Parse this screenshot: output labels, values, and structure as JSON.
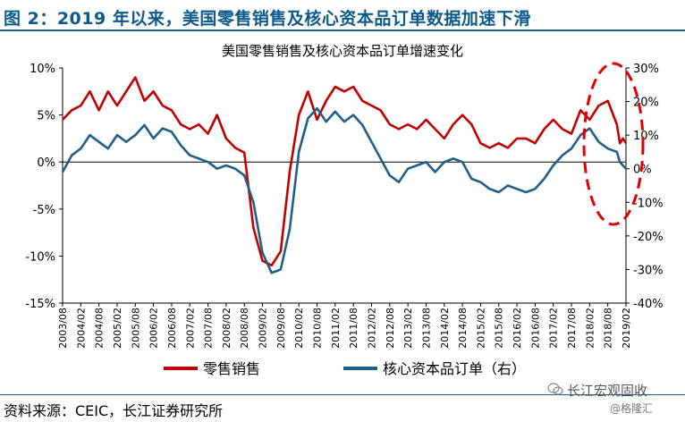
{
  "figure_title": "图 2：2019 年以来，美国零售销售及核心资本品订单数据加速下滑",
  "source": "资料来源：CEIC，长江证券研究所",
  "watermark": {
    "name": "长江宏观固收",
    "sub": "@格隆汇",
    "icon": "wechat-icon"
  },
  "chart_data": {
    "type": "line",
    "title": "美国零售销售及核心资本品订单增速变化",
    "left_axis": {
      "min": -15,
      "max": 10,
      "step": 5,
      "unit": "%",
      "tick_labels": [
        "10%",
        "5%",
        "0%",
        "-5%",
        "-10%",
        "-15%"
      ]
    },
    "right_axis": {
      "min": -40,
      "max": 30,
      "step": 10,
      "unit": "%",
      "tick_labels": [
        "30%",
        "20%",
        "10%",
        "0%",
        "-10%",
        "-20%",
        "-30%",
        "-40%"
      ]
    },
    "x_range": [
      "2003-08",
      "2019-02"
    ],
    "x_tick_labels": [
      "2003/08",
      "2004/02",
      "2004/08",
      "2005/02",
      "2005/08",
      "2006/02",
      "2006/08",
      "2007/02",
      "2007/08",
      "2008/02",
      "2008/08",
      "2009/02",
      "2009/08",
      "2010/02",
      "2010/08",
      "2011/02",
      "2011/08",
      "2012/02",
      "2012/08",
      "2013/02",
      "2013/08",
      "2014/02",
      "2014/08",
      "2015/02",
      "2015/08",
      "2016/02",
      "2016/08",
      "2017/02",
      "2017/08",
      "2018/02",
      "2018/08",
      "2019/02"
    ],
    "grid": false,
    "legend_position": "bottom",
    "annotation": "red dashed ellipse around 2018-2019",
    "colors": {
      "retail": "#c00000",
      "capital": "#1f5f8a",
      "annotation": "#e00000"
    },
    "series": [
      {
        "name": "零售销售",
        "axis": "left",
        "points": [
          [
            "2003-08",
            4.5
          ],
          [
            "2003-11",
            5.5
          ],
          [
            "2004-02",
            6
          ],
          [
            "2004-05",
            7.5
          ],
          [
            "2004-08",
            5.5
          ],
          [
            "2004-11",
            7.5
          ],
          [
            "2005-02",
            6
          ],
          [
            "2005-05",
            7.5
          ],
          [
            "2005-08",
            9
          ],
          [
            "2005-11",
            6.5
          ],
          [
            "2006-02",
            7.5
          ],
          [
            "2006-05",
            6
          ],
          [
            "2006-08",
            5.5
          ],
          [
            "2006-11",
            4
          ],
          [
            "2007-02",
            3.5
          ],
          [
            "2007-05",
            4
          ],
          [
            "2007-08",
            3
          ],
          [
            "2007-11",
            5
          ],
          [
            "2008-02",
            2.5
          ],
          [
            "2008-05",
            1.5
          ],
          [
            "2008-08",
            1
          ],
          [
            "2008-11",
            -7
          ],
          [
            "2009-02",
            -10.5
          ],
          [
            "2009-05",
            -11
          ],
          [
            "2009-08",
            -9.5
          ],
          [
            "2009-11",
            -1
          ],
          [
            "2010-02",
            5
          ],
          [
            "2010-05",
            7.5
          ],
          [
            "2010-08",
            4.5
          ],
          [
            "2010-11",
            6.5
          ],
          [
            "2011-02",
            8
          ],
          [
            "2011-05",
            7.5
          ],
          [
            "2011-08",
            8
          ],
          [
            "2011-11",
            6.5
          ],
          [
            "2012-02",
            6
          ],
          [
            "2012-05",
            5.5
          ],
          [
            "2012-08",
            4
          ],
          [
            "2012-11",
            3.5
          ],
          [
            "2013-02",
            4
          ],
          [
            "2013-05",
            3.5
          ],
          [
            "2013-08",
            4.5
          ],
          [
            "2013-11",
            3.5
          ],
          [
            "2014-02",
            2.5
          ],
          [
            "2014-05",
            4
          ],
          [
            "2014-08",
            5
          ],
          [
            "2014-11",
            4
          ],
          [
            "2015-02",
            2
          ],
          [
            "2015-05",
            1.5
          ],
          [
            "2015-08",
            2
          ],
          [
            "2015-11",
            1.5
          ],
          [
            "2016-02",
            2.5
          ],
          [
            "2016-05",
            2.5
          ],
          [
            "2016-08",
            2
          ],
          [
            "2016-11",
            3.5
          ],
          [
            "2017-02",
            4.5
          ],
          [
            "2017-05",
            3.5
          ],
          [
            "2017-08",
            3
          ],
          [
            "2017-11",
            5.5
          ],
          [
            "2018-02",
            4.5
          ],
          [
            "2018-05",
            6
          ],
          [
            "2018-08",
            6.5
          ],
          [
            "2018-11",
            4
          ],
          [
            "2018-12",
            2
          ],
          [
            "2019-01",
            2.5
          ],
          [
            "2019-02",
            2
          ]
        ]
      },
      {
        "name": "核心资本品订单（右）",
        "axis": "right",
        "points": [
          [
            "2003-08",
            -1
          ],
          [
            "2003-11",
            4
          ],
          [
            "2004-02",
            6
          ],
          [
            "2004-05",
            10
          ],
          [
            "2004-08",
            8
          ],
          [
            "2004-11",
            6
          ],
          [
            "2005-02",
            10
          ],
          [
            "2005-05",
            8
          ],
          [
            "2005-08",
            10
          ],
          [
            "2005-11",
            13
          ],
          [
            "2006-02",
            9
          ],
          [
            "2006-05",
            12
          ],
          [
            "2006-08",
            11
          ],
          [
            "2006-11",
            7
          ],
          [
            "2007-02",
            4
          ],
          [
            "2007-05",
            3
          ],
          [
            "2007-08",
            2
          ],
          [
            "2007-11",
            0
          ],
          [
            "2008-02",
            1
          ],
          [
            "2008-05",
            0
          ],
          [
            "2008-08",
            -2
          ],
          [
            "2008-11",
            -10
          ],
          [
            "2009-02",
            -25
          ],
          [
            "2009-05",
            -31
          ],
          [
            "2009-08",
            -30
          ],
          [
            "2009-11",
            -18
          ],
          [
            "2010-02",
            5
          ],
          [
            "2010-05",
            15
          ],
          [
            "2010-08",
            18
          ],
          [
            "2010-11",
            14
          ],
          [
            "2011-02",
            17
          ],
          [
            "2011-05",
            14
          ],
          [
            "2011-08",
            16
          ],
          [
            "2011-11",
            13
          ],
          [
            "2012-02",
            8
          ],
          [
            "2012-05",
            3
          ],
          [
            "2012-08",
            -2
          ],
          [
            "2012-11",
            -4
          ],
          [
            "2013-02",
            0
          ],
          [
            "2013-05",
            1
          ],
          [
            "2013-08",
            2
          ],
          [
            "2013-11",
            -1
          ],
          [
            "2014-02",
            2
          ],
          [
            "2014-05",
            3
          ],
          [
            "2014-08",
            2
          ],
          [
            "2014-11",
            -3
          ],
          [
            "2015-02",
            -4
          ],
          [
            "2015-05",
            -6
          ],
          [
            "2015-08",
            -7
          ],
          [
            "2015-11",
            -5
          ],
          [
            "2016-02",
            -6
          ],
          [
            "2016-05",
            -7
          ],
          [
            "2016-08",
            -6
          ],
          [
            "2016-11",
            -3
          ],
          [
            "2017-02",
            1
          ],
          [
            "2017-05",
            4
          ],
          [
            "2017-08",
            6
          ],
          [
            "2017-11",
            10
          ],
          [
            "2018-02",
            12
          ],
          [
            "2018-05",
            8
          ],
          [
            "2018-08",
            6
          ],
          [
            "2018-11",
            5
          ],
          [
            "2018-12",
            2
          ],
          [
            "2019-01",
            1
          ],
          [
            "2019-02",
            0
          ]
        ]
      }
    ]
  }
}
